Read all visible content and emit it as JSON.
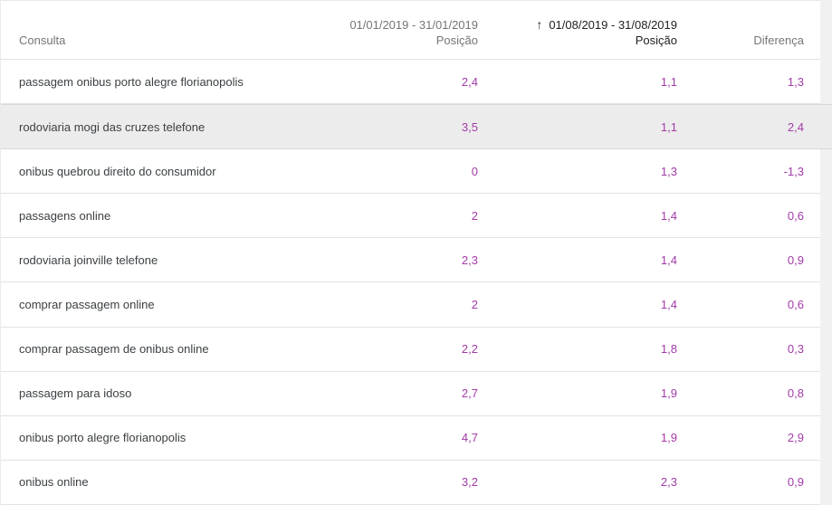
{
  "table": {
    "columns": {
      "query_label": "Consulta",
      "period1": {
        "range": "01/01/2019 - 31/01/2019",
        "metric": "Posição"
      },
      "period2": {
        "range": "01/08/2019 - 31/08/2019",
        "metric": "Posição",
        "sort_icon": "↑"
      },
      "difference_label": "Diferença"
    },
    "rows": [
      {
        "query": "passagem onibus porto alegre florianopolis",
        "pos1": "2,4",
        "pos2": "1,1",
        "diff": "1,3",
        "highlighted": false
      },
      {
        "query": "rodoviaria mogi das cruzes telefone",
        "pos1": "3,5",
        "pos2": "1,1",
        "diff": "2,4",
        "highlighted": true
      },
      {
        "query": "onibus quebrou direito do consumidor",
        "pos1": "0",
        "pos2": "1,3",
        "diff": "-1,3",
        "highlighted": false
      },
      {
        "query": "passagens online",
        "pos1": "2",
        "pos2": "1,4",
        "diff": "0,6",
        "highlighted": false
      },
      {
        "query": "rodoviaria joinville telefone",
        "pos1": "2,3",
        "pos2": "1,4",
        "diff": "0,9",
        "highlighted": false
      },
      {
        "query": "comprar passagem online",
        "pos1": "2",
        "pos2": "1,4",
        "diff": "0,6",
        "highlighted": false
      },
      {
        "query": "comprar passagem de onibus online",
        "pos1": "2,2",
        "pos2": "1,8",
        "diff": "0,3",
        "highlighted": false
      },
      {
        "query": "passagem para idoso",
        "pos1": "2,7",
        "pos2": "1,9",
        "diff": "0,8",
        "highlighted": false
      },
      {
        "query": "onibus porto alegre florianopolis",
        "pos1": "4,7",
        "pos2": "1,9",
        "diff": "2,9",
        "highlighted": false
      },
      {
        "query": "onibus online",
        "pos1": "3,2",
        "pos2": "2,3",
        "diff": "0,9",
        "highlighted": false
      }
    ],
    "colors": {
      "value": "#a33aa8",
      "header_muted": "#757575",
      "header_active": "#202124",
      "query_text": "#3c4043",
      "highlight_bg": "#ececec",
      "page_bg": "#f1f1f1"
    }
  }
}
